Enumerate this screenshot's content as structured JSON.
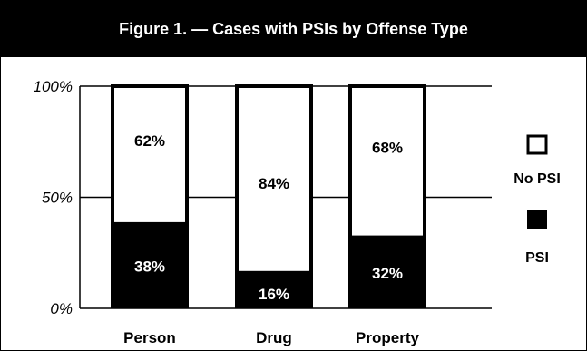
{
  "title": "Figure 1. — Cases with PSIs by Offense Type",
  "colors": {
    "psi": "#000000",
    "no_psi": "#ffffff",
    "title_bg": "#000000",
    "title_fg": "#ffffff"
  },
  "chart_data": {
    "type": "bar",
    "stacked": true,
    "categories": [
      "Person",
      "Drug",
      "Property"
    ],
    "series": [
      {
        "name": "PSI",
        "values": [
          38,
          16,
          32
        ],
        "labels": [
          "38%",
          "16%",
          "32%"
        ]
      },
      {
        "name": "No PSI",
        "values": [
          62,
          84,
          68
        ],
        "labels": [
          "62%",
          "84%",
          "68%"
        ]
      }
    ],
    "ylim": [
      0,
      100
    ],
    "yticks": [
      {
        "value": 0,
        "label": "0%"
      },
      {
        "value": 50,
        "label": "50%"
      },
      {
        "value": 100,
        "label": "100%"
      }
    ],
    "grid": true,
    "legend": {
      "placement": "right",
      "items": [
        {
          "name": "No PSI",
          "swatch": "white"
        },
        {
          "name": "PSI",
          "swatch": "black"
        }
      ]
    }
  }
}
